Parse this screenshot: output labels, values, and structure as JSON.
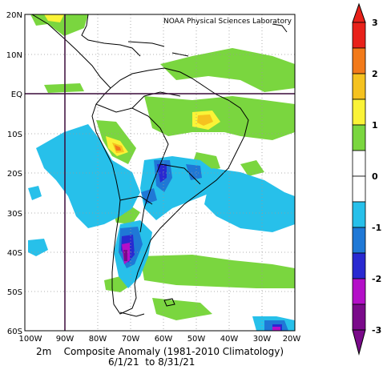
{
  "credit": "NOAA Physical Sciences Laboratory",
  "caption": {
    "line1": "2m    Composite Anomaly (1981-2010 Climatology)",
    "line2": "6/1/21  to 8/31/21"
  },
  "lat_labels": [
    "20N",
    "10N",
    "EQ",
    "10S",
    "20S",
    "30S",
    "40S",
    "50S",
    "60S"
  ],
  "lon_labels": [
    "100W",
    "90W",
    "80W",
    "70W",
    "60W",
    "50W",
    "40W",
    "30W",
    "20W"
  ],
  "colorbar": {
    "ticks": [
      "3",
      "2",
      "1",
      "0",
      "-1",
      "-2",
      "-3"
    ],
    "colors": [
      "#e8211a",
      "#f27a1a",
      "#f5c21f",
      "#faf337",
      "#7ad63f",
      "#ffffff",
      "#ffffff",
      "#27c0ea",
      "#1f78d6",
      "#2929d1",
      "#b40fc8",
      "#7a0a8a"
    ]
  },
  "map_data": {
    "type": "shaded anomaly map",
    "lon_range": [
      "100W",
      "20W"
    ],
    "lat_range": [
      "60S",
      "20N"
    ],
    "reference_lines": [
      "EQ",
      "90W"
    ]
  }
}
